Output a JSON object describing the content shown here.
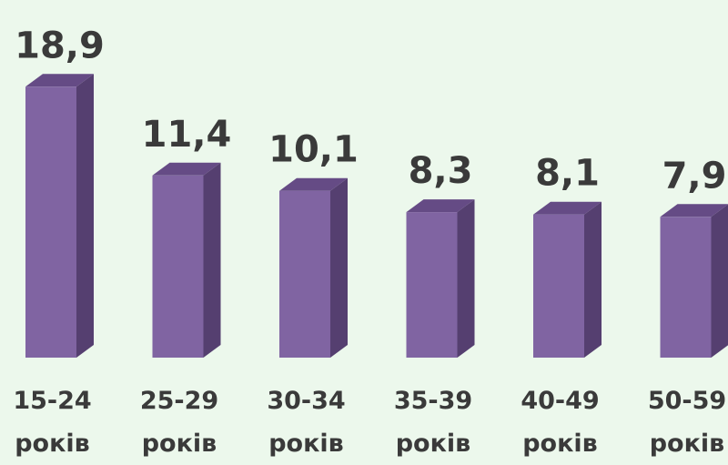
{
  "chart_data": {
    "type": "bar3d",
    "categories": [
      "15-24 років",
      "25-29 років",
      "30-34 років",
      "35-39 років",
      "40-49 років",
      "50-59 років"
    ],
    "values": [
      18.9,
      11.4,
      10.1,
      8.3,
      8.1,
      7.9
    ],
    "value_labels": [
      "18,9",
      "11,4",
      "10,1",
      "8,3",
      "8,1",
      "7,9"
    ],
    "color": "#8064a2",
    "ylim": [
      -4,
      20
    ]
  }
}
